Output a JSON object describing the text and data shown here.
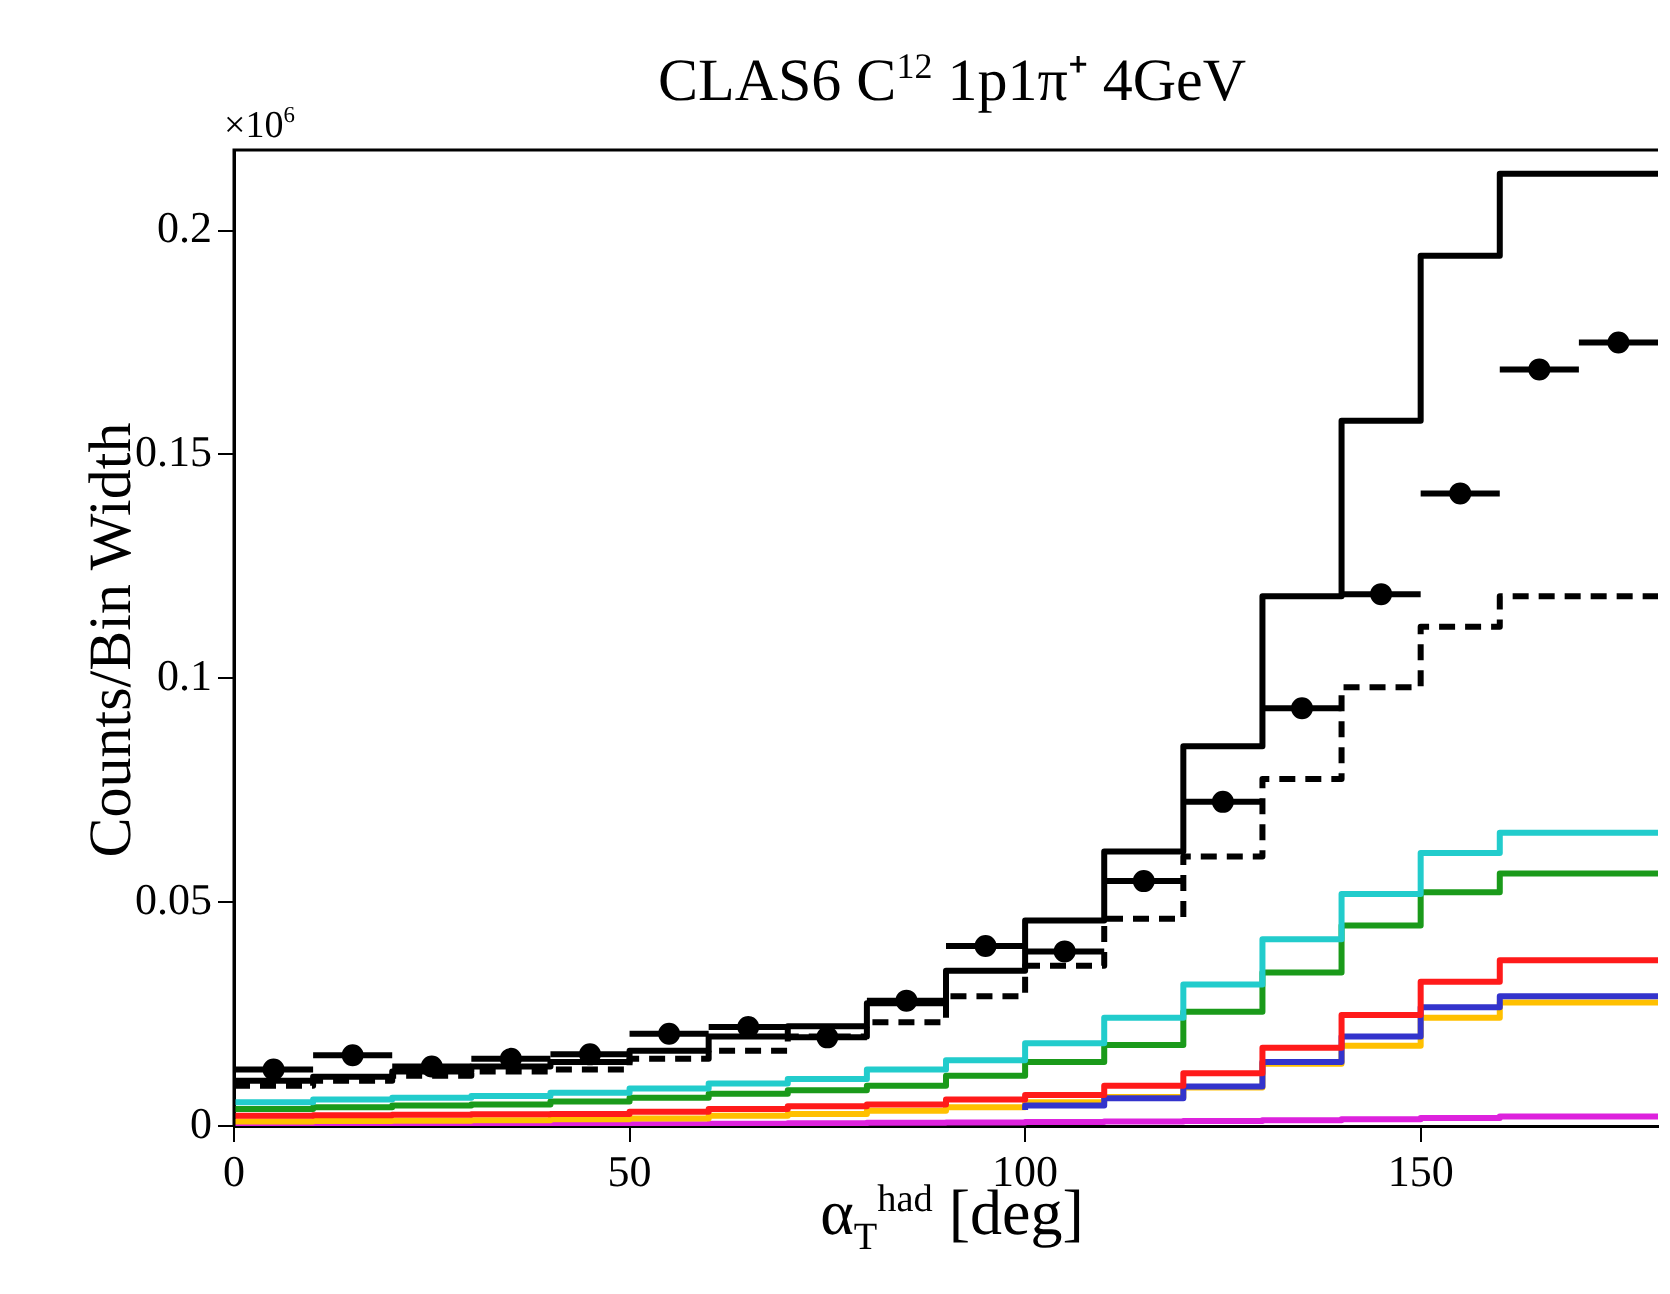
{
  "chart_data": {
    "type": "step",
    "title": "CLAS6 C$^{12}$ 1p1π⁺ 4GeV",
    "xlabel": "α$_{T}$$^{had}$ [deg]",
    "ylabel": "Counts/Bin Width",
    "annotations": [
      "×10$^{6}$"
    ],
    "x": [
      0,
      10,
      20,
      30,
      40,
      50,
      60,
      70,
      80,
      90,
      100,
      110,
      120,
      130,
      140,
      150,
      160,
      170,
      180
    ],
    "series": [
      {
        "color": "#000000",
        "values": [
          0.0101,
          0.0101,
          0.011,
          0.0122,
          0.0133,
          0.0143,
          0.0168,
          0.02,
          0.0223,
          0.0274,
          0.0347,
          0.0459,
          0.0613,
          0.0848,
          0.1183,
          0.1575,
          0.1944,
          0.2127,
          0.2127
        ]
      },
      {
        "color": "#000000",
        "line_style": "dashed",
        "values": [
          0.009,
          0.009,
          0.0101,
          0.0112,
          0.0122,
          0.0126,
          0.015,
          0.0168,
          0.02,
          0.0232,
          0.029,
          0.0358,
          0.0463,
          0.0602,
          0.0775,
          0.098,
          0.1115,
          0.1183,
          0.1183
        ]
      },
      {
        "color": "#22cccc",
        "values": [
          0.0053,
          0.0053,
          0.0059,
          0.0063,
          0.0067,
          0.0074,
          0.0084,
          0.0095,
          0.0105,
          0.0126,
          0.0147,
          0.0185,
          0.0242,
          0.0316,
          0.0417,
          0.0518,
          0.061,
          0.0655,
          0.0655
        ]
      },
      {
        "color": "#1a9a1a",
        "values": [
          0.0038,
          0.0038,
          0.0042,
          0.0046,
          0.0048,
          0.0055,
          0.0063,
          0.0072,
          0.008,
          0.009,
          0.0112,
          0.0143,
          0.0181,
          0.0255,
          0.0343,
          0.0448,
          0.0522,
          0.0564,
          0.0564
        ]
      },
      {
        "color": "#ff1a1a",
        "values": [
          0.0023,
          0.0023,
          0.0024,
          0.0025,
          0.0026,
          0.0027,
          0.0032,
          0.0038,
          0.0044,
          0.0048,
          0.0059,
          0.0069,
          0.009,
          0.0118,
          0.0175,
          0.0248,
          0.0322,
          0.037,
          0.037
        ]
      },
      {
        "color": "#3333cc",
        "values": [
          null,
          null,
          null,
          null,
          null,
          null,
          null,
          null,
          null,
          null,
          0.0036,
          0.0046,
          0.0062,
          0.0088,
          0.0143,
          0.02,
          0.0265,
          0.029,
          0.029
        ]
      },
      {
        "color": "#ffc000",
        "values": [
          0.001,
          0.001,
          0.0011,
          0.0012,
          0.0013,
          0.0015,
          0.0017,
          0.0023,
          0.0027,
          0.0034,
          0.0042,
          0.0053,
          0.0065,
          0.0086,
          0.0139,
          0.0179,
          0.0242,
          0.0276,
          0.0276
        ]
      },
      {
        "color": "#dd22dd",
        "values": [
          0.0002,
          0.0002,
          0.0002,
          0.0003,
          0.0003,
          0.0004,
          0.0004,
          0.0005,
          0.0006,
          0.0007,
          0.0008,
          0.0009,
          0.001,
          0.0011,
          0.0013,
          0.0015,
          0.0018,
          0.0021,
          0.0021
        ]
      },
      {
        "type": "scatter",
        "color": "#000000",
        "marker": "circle",
        "x": [
          5,
          15,
          25,
          35,
          45,
          55,
          65,
          75,
          85,
          95,
          105,
          115,
          125,
          135,
          145,
          155,
          165,
          175
        ],
        "values": [
          0.0126,
          0.0158,
          0.0133,
          0.015,
          0.016,
          0.0206,
          0.0221,
          0.0198,
          0.028,
          0.0402,
          0.039,
          0.0547,
          0.0724,
          0.0933,
          0.1188,
          0.1413,
          0.169,
          0.175
        ],
        "xerrors": [
          5,
          5,
          5,
          5,
          5,
          5,
          5,
          5,
          5,
          5,
          5,
          5,
          5,
          5,
          5,
          5,
          5,
          5
        ]
      }
    ],
    "xlim": [
      0,
      180
    ],
    "ylim": [
      0,
      0.218
    ],
    "xticks": [
      0,
      50,
      100,
      150
    ],
    "yticks": [
      0,
      0.05,
      0.1,
      0.15,
      0.2
    ]
  }
}
